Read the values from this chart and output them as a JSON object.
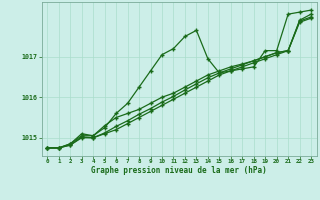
{
  "title": "Graphe pression niveau de la mer (hPa)",
  "bg_color": "#cceee8",
  "grid_color": "#aaddcc",
  "line_color": "#1a6b1a",
  "xlim": [
    -0.5,
    23.5
  ],
  "ylim": [
    1014.55,
    1018.35
  ],
  "yticks": [
    1015,
    1016,
    1017
  ],
  "xticks": [
    0,
    1,
    2,
    3,
    4,
    5,
    6,
    7,
    8,
    9,
    10,
    11,
    12,
    13,
    14,
    15,
    16,
    17,
    18,
    19,
    20,
    21,
    22,
    23
  ],
  "line1_x": [
    0,
    1,
    2,
    3,
    4,
    5,
    6,
    7,
    8,
    9,
    10,
    11,
    12,
    13,
    14,
    15,
    16,
    17,
    18,
    19,
    20,
    21,
    22,
    23
  ],
  "line1_y": [
    1014.75,
    1014.75,
    1014.85,
    1015.05,
    1015.05,
    1015.25,
    1015.6,
    1015.85,
    1016.25,
    1016.65,
    1017.05,
    1017.2,
    1017.5,
    1017.65,
    1016.95,
    1016.6,
    1016.65,
    1016.7,
    1016.75,
    1017.15,
    1017.15,
    1018.05,
    1018.1,
    1018.15
  ],
  "line2_x": [
    0,
    1,
    2,
    3,
    4,
    5,
    6,
    7,
    8,
    9,
    10,
    11,
    12,
    13,
    14,
    15,
    16,
    17,
    18,
    19,
    20,
    21,
    22,
    23
  ],
  "line2_y": [
    1014.75,
    1014.75,
    1014.85,
    1015.1,
    1015.05,
    1015.3,
    1015.5,
    1015.6,
    1015.7,
    1015.85,
    1016.0,
    1016.1,
    1016.25,
    1016.4,
    1016.55,
    1016.65,
    1016.75,
    1016.82,
    1016.9,
    1017.0,
    1017.1,
    1017.15,
    1017.9,
    1018.05
  ],
  "line3_x": [
    0,
    1,
    2,
    3,
    4,
    5,
    6,
    7,
    8,
    9,
    10,
    11,
    12,
    13,
    14,
    15,
    16,
    17,
    18,
    19,
    20,
    21,
    22,
    23
  ],
  "line3_y": [
    1014.75,
    1014.75,
    1014.82,
    1015.0,
    1015.0,
    1015.1,
    1015.2,
    1015.35,
    1015.5,
    1015.65,
    1015.8,
    1015.95,
    1016.1,
    1016.25,
    1016.4,
    1016.55,
    1016.65,
    1016.75,
    1016.85,
    1016.95,
    1017.05,
    1017.15,
    1017.85,
    1017.95
  ],
  "line4_x": [
    0,
    1,
    2,
    3,
    4,
    5,
    6,
    7,
    8,
    9,
    10,
    11,
    12,
    13,
    14,
    15,
    16,
    17,
    18,
    19,
    20,
    21,
    22,
    23
  ],
  "line4_y": [
    1014.75,
    1014.75,
    1014.82,
    1015.02,
    1015.0,
    1015.12,
    1015.28,
    1015.42,
    1015.58,
    1015.72,
    1015.88,
    1016.02,
    1016.18,
    1016.33,
    1016.48,
    1016.6,
    1016.7,
    1016.8,
    1016.9,
    1017.0,
    1017.1,
    1017.15,
    1017.88,
    1017.98
  ]
}
